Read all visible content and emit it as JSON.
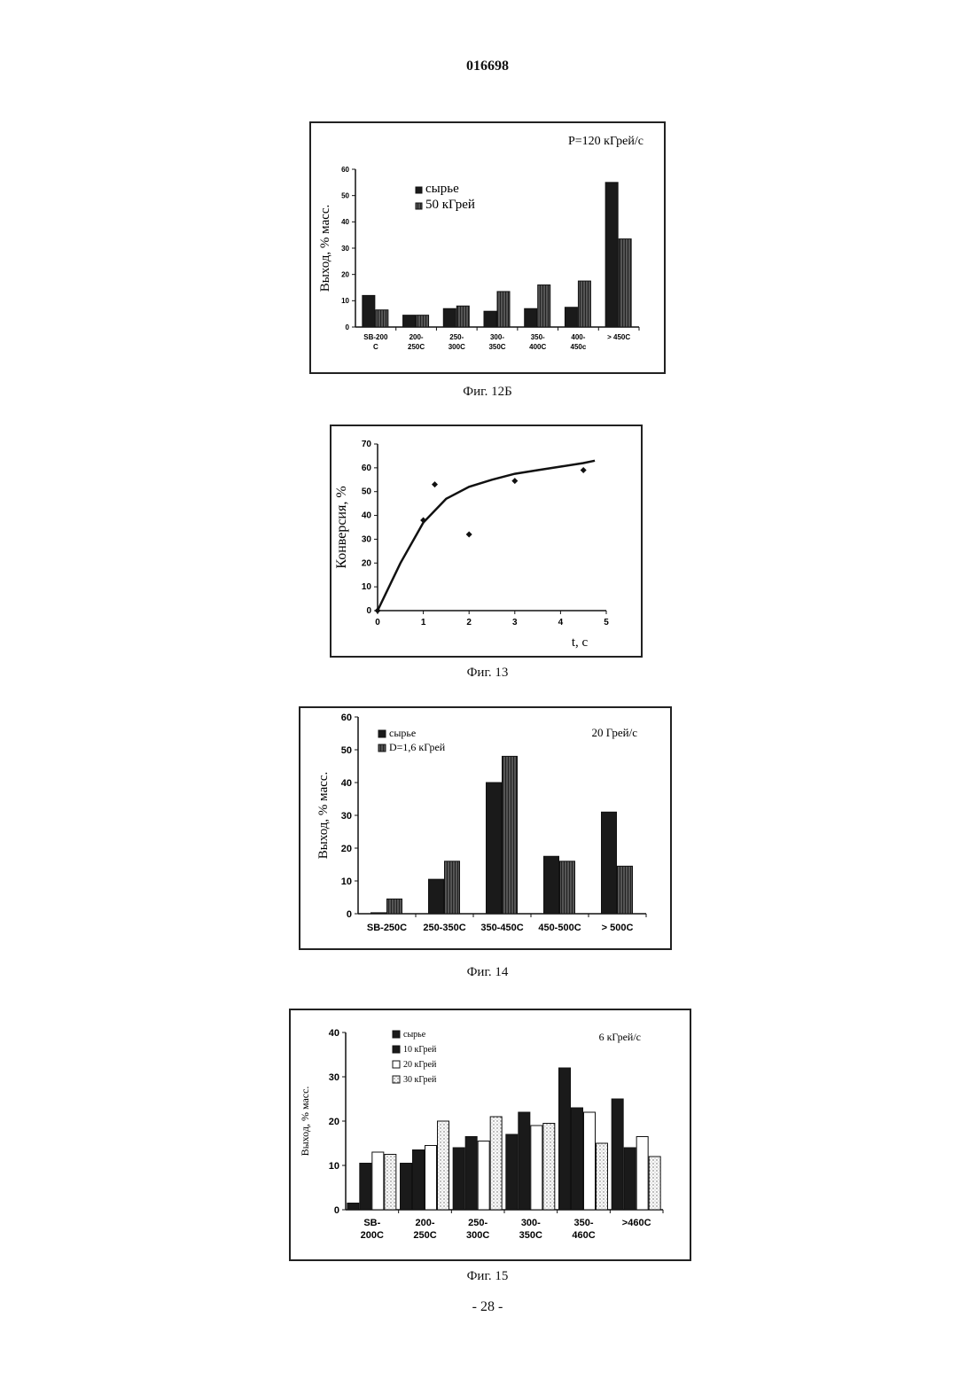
{
  "header": {
    "patent_number": "016698"
  },
  "footer": {
    "page_number": "- 28 -"
  },
  "figures": [
    {
      "caption": "Фиг. 12Б"
    },
    {
      "caption": "Фиг. 13"
    },
    {
      "caption": "Фиг. 14"
    },
    {
      "caption": "Фиг. 15"
    }
  ],
  "chart_data": [
    {
      "type": "bar",
      "annotation": "P=120 кГрей/с",
      "ylabel": "Выход, % масс.",
      "xlabel": "",
      "ylim": [
        0,
        60
      ],
      "yticks": [
        0,
        10,
        20,
        30,
        40,
        50,
        60
      ],
      "categories": [
        [
          "SB-200",
          "C"
        ],
        [
          "200-",
          "250C"
        ],
        [
          "250-",
          "300C"
        ],
        [
          "300-",
          "350C"
        ],
        [
          "350-",
          "400C"
        ],
        [
          "400-",
          "450c"
        ],
        [
          "> 450C"
        ]
      ],
      "legend_placement": "top-left",
      "series": [
        {
          "name": "сырье",
          "color": "#1a1a1a",
          "pattern": "solid",
          "values": [
            12,
            4.5,
            7,
            6,
            7,
            7.5,
            55
          ]
        },
        {
          "name": "50 кГрей",
          "color": "#3a3a3a",
          "pattern": "hatched",
          "values": [
            6.5,
            4.5,
            8,
            13.5,
            16,
            17.5,
            33.5
          ]
        }
      ]
    },
    {
      "type": "scatter",
      "ylabel": "Конверсия, %",
      "xlabel": "t, с",
      "xlim": [
        0,
        5
      ],
      "ylim": [
        0,
        70
      ],
      "xticks": [
        0,
        1,
        2,
        3,
        4,
        5
      ],
      "yticks": [
        0,
        10,
        20,
        30,
        40,
        50,
        60,
        70
      ],
      "points": [
        [
          0,
          0
        ],
        [
          1,
          38
        ],
        [
          1.25,
          53
        ],
        [
          2,
          32
        ],
        [
          3,
          54.5
        ],
        [
          4.5,
          59
        ]
      ],
      "fit_curve": [
        [
          0,
          0
        ],
        [
          0.5,
          20
        ],
        [
          1,
          37
        ],
        [
          1.5,
          47
        ],
        [
          2,
          52
        ],
        [
          2.5,
          55
        ],
        [
          3,
          57.5
        ],
        [
          3.5,
          59
        ],
        [
          4,
          60.5
        ],
        [
          4.5,
          62
        ],
        [
          4.75,
          63
        ]
      ]
    },
    {
      "type": "bar",
      "annotation": "20 Грей/с",
      "ylabel": "Выход, % масс.",
      "xlabel": "",
      "ylim": [
        0,
        60
      ],
      "yticks": [
        0,
        10,
        20,
        30,
        40,
        50,
        60
      ],
      "categories": [
        [
          "SB-250C"
        ],
        [
          "250-350C"
        ],
        [
          "350-450C"
        ],
        [
          "450-500C"
        ],
        [
          "> 500C"
        ]
      ],
      "legend_placement": "top-left",
      "series": [
        {
          "name": "сырье",
          "color": "#1a1a1a",
          "pattern": "solid",
          "values": [
            0.3,
            10.5,
            40,
            17.5,
            31
          ]
        },
        {
          "name": "D=1,6 кГрей",
          "color": "#3a3a3a",
          "pattern": "hatched",
          "values": [
            4.5,
            16,
            48,
            16,
            14.5
          ]
        }
      ]
    },
    {
      "type": "bar",
      "annotation": "6 кГрей/с",
      "ylabel": "Выход, % масс.",
      "xlabel": "",
      "ylim": [
        0,
        40
      ],
      "yticks": [
        0,
        10,
        20,
        30,
        40
      ],
      "categories": [
        [
          "SB-",
          "200C"
        ],
        [
          "200-",
          "250C"
        ],
        [
          "250-",
          "300C"
        ],
        [
          "300-",
          "350C"
        ],
        [
          "350-",
          "460C"
        ],
        [
          ">460C"
        ]
      ],
      "legend_placement": "top-left",
      "series": [
        {
          "name": "сырье",
          "color": "#1a1a1a",
          "pattern": "solid",
          "values": [
            1.5,
            10.5,
            14,
            17,
            32,
            25
          ]
        },
        {
          "name": "10 кГрей",
          "color": "#1a1a1a",
          "pattern": "solid",
          "values": [
            10.5,
            13.5,
            16.5,
            22,
            23,
            14
          ]
        },
        {
          "name": "20 кГрей",
          "color": "#ffffff",
          "pattern": "open",
          "values": [
            13,
            14.5,
            15.5,
            19,
            22,
            16.5
          ]
        },
        {
          "name": "30 кГрей",
          "color": "#dddddd",
          "pattern": "dotted",
          "values": [
            12.5,
            20,
            21,
            19.5,
            15,
            12
          ]
        }
      ]
    }
  ]
}
